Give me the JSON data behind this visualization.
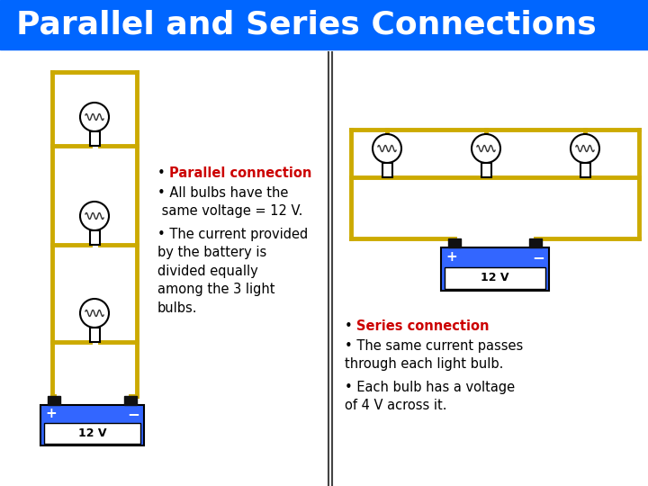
{
  "title": "Parallel and Series Connections",
  "title_bg": "#0066ff",
  "title_color": "#ffffff",
  "title_fontsize": 26,
  "bg_color": "#ffffff",
  "wire_color": "#ccaa00",
  "wire_lw": 3.5,
  "battery_color": "#3366ff",
  "battery_text": "12 V",
  "divider_color": "#444444",
  "par_bullet1": "Parallel connection",
  "par_bullet2": " All bulbs have the\n same voltage = 12 V.",
  "par_bullet3": "The current provided\nby the battery is\ndivided equally\namong the 3 light\nbulbs.",
  "ser_bullet1": "Series connection",
  "ser_bullet2": "The same current passes\nthrough each light bulb.",
  "ser_bullet3": "Each bulb has a voltage\nof 4 V across it.",
  "red_color": "#cc0000",
  "black_color": "#000000"
}
